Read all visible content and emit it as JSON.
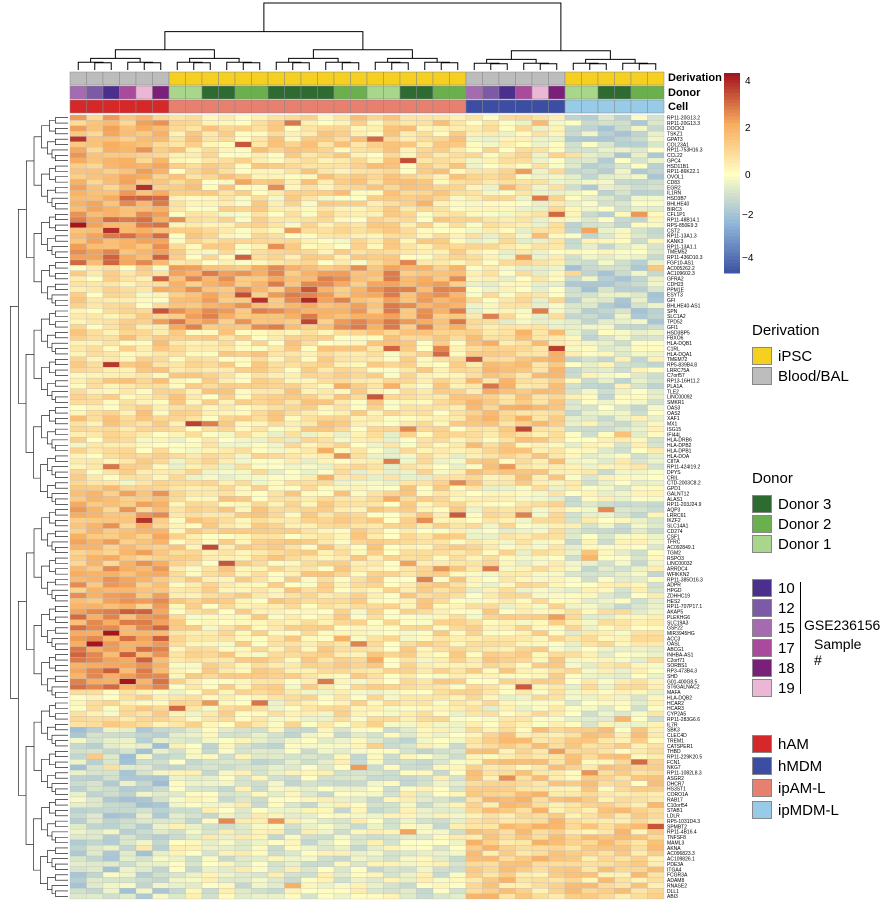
{
  "chart_data": {
    "type": "heatmap",
    "title": "",
    "columns": 36,
    "track_labels": {
      "derivation": "Derivation",
      "donor": "Donor",
      "cell": "Cell"
    },
    "colorbar": {
      "min": -4,
      "max": 4,
      "ticks": [
        "4",
        "2",
        "0",
        "−2",
        "−4"
      ],
      "colors": [
        "#3a4fa0",
        "#8fb5d9",
        "#ffffc4",
        "#f8ad60",
        "#a4161b"
      ]
    },
    "column_annotations": {
      "derivation": [
        "Blood/BAL",
        "Blood/BAL",
        "Blood/BAL",
        "Blood/BAL",
        "Blood/BAL",
        "Blood/BAL",
        "iPSC",
        "iPSC",
        "iPSC",
        "iPSC",
        "iPSC",
        "iPSC",
        "iPSC",
        "iPSC",
        "iPSC",
        "iPSC",
        "iPSC",
        "iPSC",
        "iPSC",
        "iPSC",
        "iPSC",
        "iPSC",
        "iPSC",
        "iPSC",
        "Blood/BAL",
        "Blood/BAL",
        "Blood/BAL",
        "Blood/BAL",
        "Blood/BAL",
        "Blood/BAL",
        "iPSC",
        "iPSC",
        "iPSC",
        "iPSC",
        "iPSC",
        "iPSC"
      ],
      "cell": [
        "hAM",
        "hAM",
        "hAM",
        "hAM",
        "hAM",
        "hAM",
        "ipAM-L",
        "ipAM-L",
        "ipAM-L",
        "ipAM-L",
        "ipAM-L",
        "ipAM-L",
        "ipAM-L",
        "ipAM-L",
        "ipAM-L",
        "ipAM-L",
        "ipAM-L",
        "ipAM-L",
        "ipAM-L",
        "ipAM-L",
        "ipAM-L",
        "ipAM-L",
        "ipAM-L",
        "ipAM-L",
        "hMDM",
        "hMDM",
        "hMDM",
        "hMDM",
        "hMDM",
        "hMDM",
        "ipMDM-L",
        "ipMDM-L",
        "ipMDM-L",
        "ipMDM-L",
        "ipMDM-L",
        "ipMDM-L"
      ]
    },
    "genes": [
      "RP11-20G13.2",
      "RP11-20G13.3",
      "DOCK3",
      "TSKZ1",
      "GPAT3",
      "COL23A1",
      "RP11-753H16.3",
      "CCL22",
      "GPC4",
      "HSD11B1",
      "RP11-86K22.1",
      "OVOL1",
      "CD83",
      "EGR2",
      "IL1RN",
      "HSD3B7",
      "BHLHE40",
      "BIRC3",
      "CFL1P1",
      "RP11-48B14.1",
      "RPS-850E9.3",
      "CST2",
      "RP11-13A1.3",
      "KANK3",
      "RP11-13A1.1",
      "TMEM52",
      "RP11-436D10.3",
      "FGF10-AS1",
      "AC005262.2",
      "AC109602.3",
      "GFRA2",
      "CDH23",
      "PPM1E",
      "ESYT3",
      "GFI",
      "BHLHE40-AS1",
      "SPN",
      "SLC1A2",
      "TPD52",
      "GFI1",
      "HSD3BP5",
      "FBXO6",
      "HLA-DQB1",
      "C1RL",
      "HLA-DQA1",
      "TMEM72",
      "RP5-839B4.8",
      "LRRC75A",
      "C7orf57",
      "RP13-16H11.2",
      "PLA1A",
      "TLE2",
      "LINC00092",
      "SMKR1",
      "OAS3",
      "OAS2",
      "XAF1",
      "MX1",
      "ISG15",
      "IFI44L",
      "HLA-DRB6",
      "HLA-DPB2",
      "HLA-DPB1",
      "HLA-DOA",
      "CIITA",
      "RP11-424I19.2",
      "DPYS",
      "CRIL",
      "CTD-2003C8.2",
      "GPD1",
      "GALNT12",
      "ALAS1",
      "RP11-203J24.9",
      "AQP3",
      "LRRC61",
      "IKZF2",
      "SLC14A1",
      "CD274",
      "CSF1",
      "TFRC",
      "AC092849.1",
      "TGM2",
      "RSPO3",
      "LINC00032",
      "ARRDC4",
      "WFIKKN2",
      "RP11-385O16.3",
      "ADPR",
      "HPGD",
      "ZDHHC19",
      "HES2",
      "RP11-707P17.1",
      "AKAP5",
      "PLEKHG6",
      "SLC19A3",
      "GSF22",
      "MIR3945HG",
      "ACC3",
      "OASL",
      "ABCG1",
      "INHBA-AS1",
      "C2orf71",
      "SORBS1",
      "RP3-473B4.3",
      "SHD",
      "G01-400G8.5",
      "ST6GALNAC2",
      "MAFA",
      "HLA-DQB2",
      "HCAR2",
      "HCAR3",
      "CYP2A5",
      "RP11-283G6.6",
      "IL7R",
      "SBK3",
      "CLEC4D",
      "TREM1",
      "CATSPER1",
      "THBD",
      "RP11-229K20.5",
      "FCN1",
      "NKG7",
      "RP11-1082L8.3",
      "ASGR2",
      "DHCR7",
      "HS3ST1",
      "CORO1A",
      "RAB17",
      "C10orf54",
      "STAB1",
      "LDLR",
      "RP5-1031D4.3",
      "SPMBT2",
      "RP11-4B16.4",
      "TNFSF8",
      "MAML3",
      "AKNA",
      "AC096823.3",
      "AC109826.1",
      "PDE3A",
      "ITGA4",
      "FCGR3A",
      "ADAM8",
      "RNASE2",
      "DLL1",
      "ABI3"
    ]
  },
  "legends": {
    "derivation": {
      "title": "Derivation",
      "items": [
        {
          "label": "iPSC",
          "color": "#f5d020"
        },
        {
          "label": "Blood/BAL",
          "color": "#bdbdbd"
        }
      ]
    },
    "donor": {
      "title": "Donor",
      "items": [
        {
          "label": "Donor 3",
          "color": "#2e6b30"
        },
        {
          "label": "Donor 2",
          "color": "#6ab04c"
        },
        {
          "label": "Donor 1",
          "color": "#a8d68a"
        }
      ]
    },
    "sample": {
      "items": [
        {
          "label": "10",
          "color": "#4a2f8c"
        },
        {
          "label": "12",
          "color": "#7d5aa8"
        },
        {
          "label": "15",
          "color": "#a56bb0"
        },
        {
          "label": "17",
          "color": "#a94a9d"
        },
        {
          "label": "18",
          "color": "#7a1f7a"
        },
        {
          "label": "19",
          "color": "#ecb7d6"
        }
      ],
      "caption_line1": "GSE236156",
      "caption_line2": "Sample #"
    },
    "cell": {
      "items": [
        {
          "label": "hAM",
          "color": "#d62828"
        },
        {
          "label": "hMDM",
          "color": "#3b4ea3"
        },
        {
          "label": "ipAM-L",
          "color": "#e88070"
        },
        {
          "label": "ipMDM-L",
          "color": "#98cbe8"
        }
      ]
    }
  }
}
